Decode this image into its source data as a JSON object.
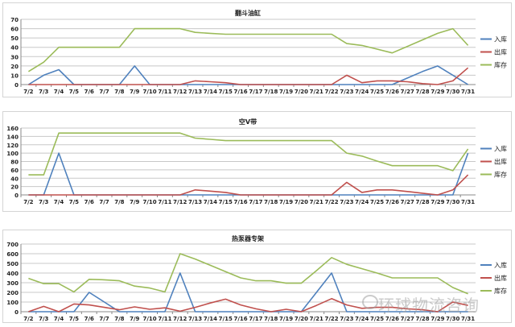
{
  "legend": [
    "入库",
    "出库",
    "库存"
  ],
  "colors": {
    "in": "#4f81bd",
    "out": "#c0504d",
    "stock": "#9bbb59"
  },
  "watermark": "环球物流咨询",
  "chart_data": [
    {
      "type": "line",
      "title": "翻斗油缸",
      "ylim": [
        0,
        70
      ],
      "ystep": 10,
      "categories": [
        "7/2",
        "7/3",
        "7/4",
        "7/5",
        "7/6",
        "7/7",
        "7/8",
        "7/9",
        "7/10",
        "7/11",
        "7/12",
        "7/13",
        "7/14",
        "7/15",
        "7/16",
        "7/17",
        "7/18",
        "7/19",
        "7/20",
        "7/21",
        "7/22",
        "7/23",
        "7/24",
        "7/25",
        "7/26",
        "7/27",
        "7/28",
        "7/29",
        "7/30",
        "7/31"
      ],
      "series": [
        {
          "name": "入库",
          "values": [
            0,
            10,
            16,
            0,
            0,
            0,
            0,
            20,
            0,
            0,
            0,
            0,
            0,
            0,
            0,
            0,
            0,
            0,
            0,
            0,
            0,
            0,
            0,
            0,
            0,
            7,
            14,
            20,
            10,
            0
          ]
        },
        {
          "name": "出库",
          "values": [
            0,
            0,
            0,
            0,
            0,
            0,
            0,
            0,
            0,
            0,
            0,
            4,
            3,
            2,
            0,
            0,
            0,
            0,
            0,
            0,
            0,
            10,
            2,
            4,
            4,
            3,
            1,
            0,
            4,
            18
          ]
        },
        {
          "name": "库存",
          "values": [
            14,
            24,
            40,
            40,
            40,
            40,
            40,
            60,
            60,
            60,
            60,
            56,
            55,
            54,
            54,
            54,
            54,
            54,
            54,
            54,
            54,
            44,
            42,
            38,
            34,
            41,
            48,
            55,
            60,
            42
          ]
        }
      ],
      "legend_position": "right",
      "grid": true
    },
    {
      "type": "line",
      "title": "空V带",
      "ylim": [
        0,
        160
      ],
      "ystep": 20,
      "categories": [
        "7/2",
        "7/3",
        "7/4",
        "7/5",
        "7/6",
        "7/7",
        "7/8",
        "7/9",
        "7/10",
        "7/11",
        "7/12",
        "7/13",
        "7/14",
        "7/15",
        "7/16",
        "7/17",
        "7/18",
        "7/19",
        "7/20",
        "7/21",
        "7/22",
        "7/23",
        "7/24",
        "7/25",
        "7/26",
        "7/27",
        "7/28",
        "7/29",
        "7/30",
        "7/31"
      ],
      "series": [
        {
          "name": "入库",
          "values": [
            0,
            0,
            100,
            0,
            0,
            0,
            0,
            0,
            0,
            0,
            0,
            0,
            0,
            0,
            0,
            0,
            0,
            0,
            0,
            0,
            0,
            0,
            0,
            0,
            0,
            0,
            0,
            0,
            0,
            100
          ]
        },
        {
          "name": "出库",
          "values": [
            0,
            0,
            0,
            0,
            0,
            0,
            0,
            0,
            0,
            0,
            0,
            12,
            9,
            6,
            0,
            0,
            0,
            0,
            0,
            0,
            0,
            30,
            6,
            12,
            12,
            8,
            4,
            0,
            12,
            48
          ]
        },
        {
          "name": "库存",
          "values": [
            48,
            48,
            148,
            148,
            148,
            148,
            148,
            148,
            148,
            148,
            148,
            136,
            133,
            130,
            130,
            130,
            130,
            130,
            130,
            130,
            130,
            100,
            93,
            81,
            70,
            70,
            70,
            70,
            58,
            110
          ]
        }
      ],
      "legend_position": "right",
      "grid": true
    },
    {
      "type": "line",
      "title": "热泵器专架",
      "ylim": [
        0,
        700
      ],
      "ystep": 100,
      "categories": [
        "7/2",
        "7/3",
        "7/4",
        "7/5",
        "7/6",
        "7/7",
        "7/8",
        "7/9",
        "7/10",
        "7/11",
        "7/12",
        "7/13",
        "7/14",
        "7/15",
        "7/16",
        "7/17",
        "7/18",
        "7/19",
        "7/20",
        "7/21",
        "7/22",
        "7/23",
        "7/24",
        "7/25",
        "7/26",
        "7/27",
        "7/28",
        "7/29",
        "7/30",
        "7/31"
      ],
      "series": [
        {
          "name": "入库",
          "values": [
            0,
            0,
            0,
            0,
            200,
            100,
            0,
            0,
            0,
            0,
            400,
            0,
            0,
            0,
            0,
            0,
            0,
            0,
            0,
            200,
            400,
            0,
            0,
            0,
            0,
            0,
            0,
            0,
            0,
            0
          ]
        },
        {
          "name": "出库",
          "values": [
            0,
            55,
            0,
            80,
            70,
            45,
            20,
            50,
            25,
            40,
            5,
            45,
            90,
            130,
            70,
            30,
            0,
            25,
            0,
            65,
            135,
            70,
            35,
            45,
            45,
            30,
            20,
            0,
            100,
            65
          ]
        },
        {
          "name": "库存",
          "values": [
            345,
            290,
            290,
            205,
            335,
            330,
            320,
            265,
            245,
            205,
            600,
            545,
            480,
            415,
            350,
            320,
            320,
            295,
            295,
            425,
            560,
            490,
            445,
            400,
            350,
            350,
            350,
            350,
            250,
            185
          ]
        }
      ],
      "legend_position": "right",
      "grid": true
    }
  ]
}
